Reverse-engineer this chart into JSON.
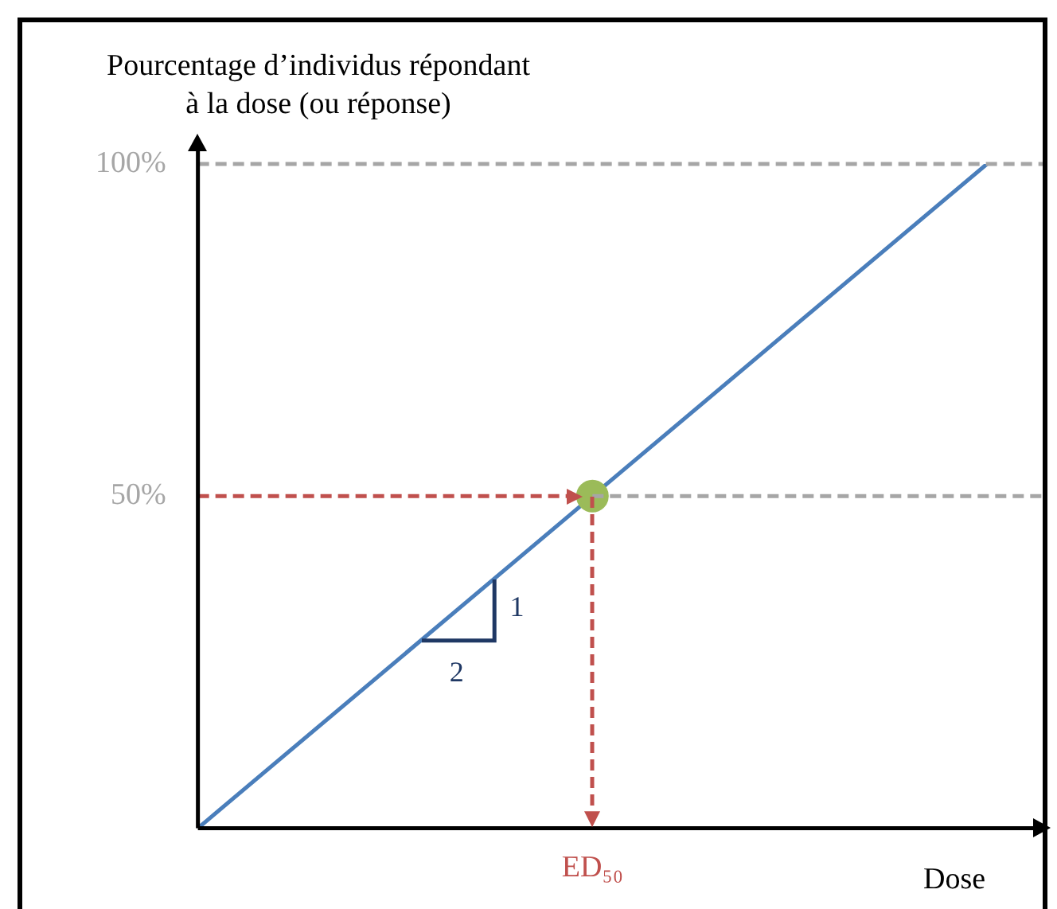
{
  "chart_data": {
    "type": "line",
    "ylabel": "Pourcentage d’individus répondant\nà la dose (ou réponse)",
    "xlabel": "Dose",
    "categories": [
      null,
      "ED₅₀",
      null
    ],
    "series": [
      {
        "type": "line",
        "color": "#4a7ebb",
        "values": [
          0,
          50,
          100
        ],
        "marker": "none"
      },
      {
        "type": "scatter",
        "color": "#9bbb59",
        "x": [
          "ED₅₀"
        ],
        "values": [
          50
        ],
        "marker": "circle"
      }
    ],
    "ylim": [
      0,
      100
    ],
    "yticks": [
      {
        "value": 0,
        "label": null
      },
      {
        "value": 50,
        "label": "50%"
      },
      {
        "value": 100,
        "label": "100%"
      }
    ],
    "ref_lines": [
      {
        "axis": "y",
        "value": 100,
        "color": "#a6a6a6",
        "line_style": "dashed"
      },
      {
        "axis": "y",
        "value": 50,
        "color": "#c0504d",
        "line_style": "dashed"
      },
      {
        "axis": "y",
        "value": 50,
        "color": "#a6a6a6",
        "line_style": "dashed"
      }
    ],
    "annotations": [
      "1",
      "2"
    ],
    "grid": false,
    "legend": false
  }
}
